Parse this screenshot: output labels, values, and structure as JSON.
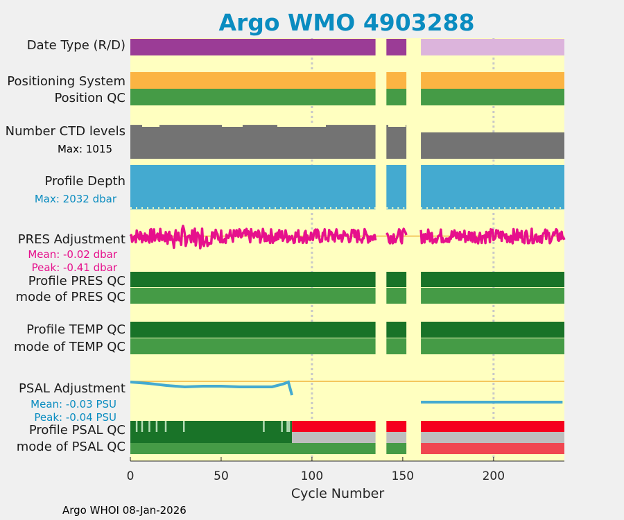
{
  "chart_data": {
    "type": "timeline",
    "title": "Argo WMO 4903288",
    "xlabel": "Cycle Number",
    "xlim": [
      0,
      239
    ],
    "xticks": [
      0,
      50,
      100,
      150,
      200
    ],
    "grid_x": [
      100,
      200
    ],
    "footer": "Argo WHOI 08-Jan-2026",
    "data_segments": [
      [
        0,
        135
      ],
      [
        141,
        152
      ],
      [
        160,
        239
      ]
    ],
    "colors": {
      "title": "#0a8cc0",
      "plot_bg": "#ffffc0",
      "page_bg": "#f0f0f0",
      "date_real": "#9b3c96",
      "date_delayed": "#dcb4dc",
      "positioning": "#fbb443",
      "qc_good_dark": "#197328",
      "qc_good": "#459b46",
      "ctd": "#737373",
      "profile_depth": "#44aad0",
      "pres_adjust": "#e6108c",
      "psal_adjust": "#44aad0",
      "zero_line": "#f0b43c",
      "qc_bad": "#f5001e",
      "qc_bad_light": "#f04650",
      "qc_gray": "#bebebe"
    },
    "rows": {
      "date_type": "Date Type (R/D)",
      "positioning": "Positioning System",
      "position_qc": "Position QC",
      "ctd_levels": "Number CTD levels",
      "ctd_max": "Max: 1015",
      "profile_depth": "Profile Depth",
      "depth_max": "Max: 2032 dbar",
      "pres_adjustment": "PRES Adjustment",
      "pres_mean": "Mean: -0.02 dbar",
      "pres_peak": "Peak: -0.41 dbar",
      "profile_pres_qc": "Profile PRES QC",
      "mode_pres_qc": "mode of PRES QC",
      "profile_temp_qc": "Profile TEMP QC",
      "mode_temp_qc": "mode of TEMP QC",
      "psal_adjustment": "PSAL Adjustment",
      "psal_mean": "Mean: -0.03 PSU",
      "psal_peak": "Peak: -0.04 PSU",
      "profile_psal_qc": "Profile PSAL QC",
      "mode_psal_qc": "mode of PSAL QC"
    },
    "date_type_switch_cycle": 160,
    "psal_qc_switch_cycle": 89,
    "psal_bad_segment_cycle": 160,
    "psal_adjust_series": {
      "cycles": [
        0,
        10,
        20,
        30,
        40,
        50,
        60,
        70,
        78,
        84,
        87,
        89
      ],
      "values": [
        -0.001,
        -0.003,
        -0.006,
        -0.008,
        -0.007,
        -0.007,
        -0.008,
        -0.008,
        -0.008,
        -0.004,
        -0.001,
        -0.02
      ]
    },
    "psal_adjust_late_value": -0.03,
    "psal_adjust_late_range": [
      160,
      238
    ],
    "psal_adjust_ylim": [
      -0.05,
      0.01
    ],
    "pres_adjust_ylim": [
      -0.5,
      0.3
    ],
    "ctd_ylim": [
      0,
      1100
    ],
    "ctd_values": [
      {
        "range": [
          0,
          135
        ],
        "value": 1015
      },
      {
        "range": [
          141,
          152
        ],
        "value": 1015
      },
      {
        "range": [
          160,
          239
        ],
        "value": 790
      }
    ],
    "depth_ylim": [
      0,
      2100
    ],
    "depth_value": 2032,
    "profile_psal_qc_pale_cycles": [
      3,
      6,
      10,
      14,
      19,
      29,
      73,
      83,
      86,
      87
    ],
    "profile_psal_qc_good_range": [
      0,
      89
    ]
  }
}
